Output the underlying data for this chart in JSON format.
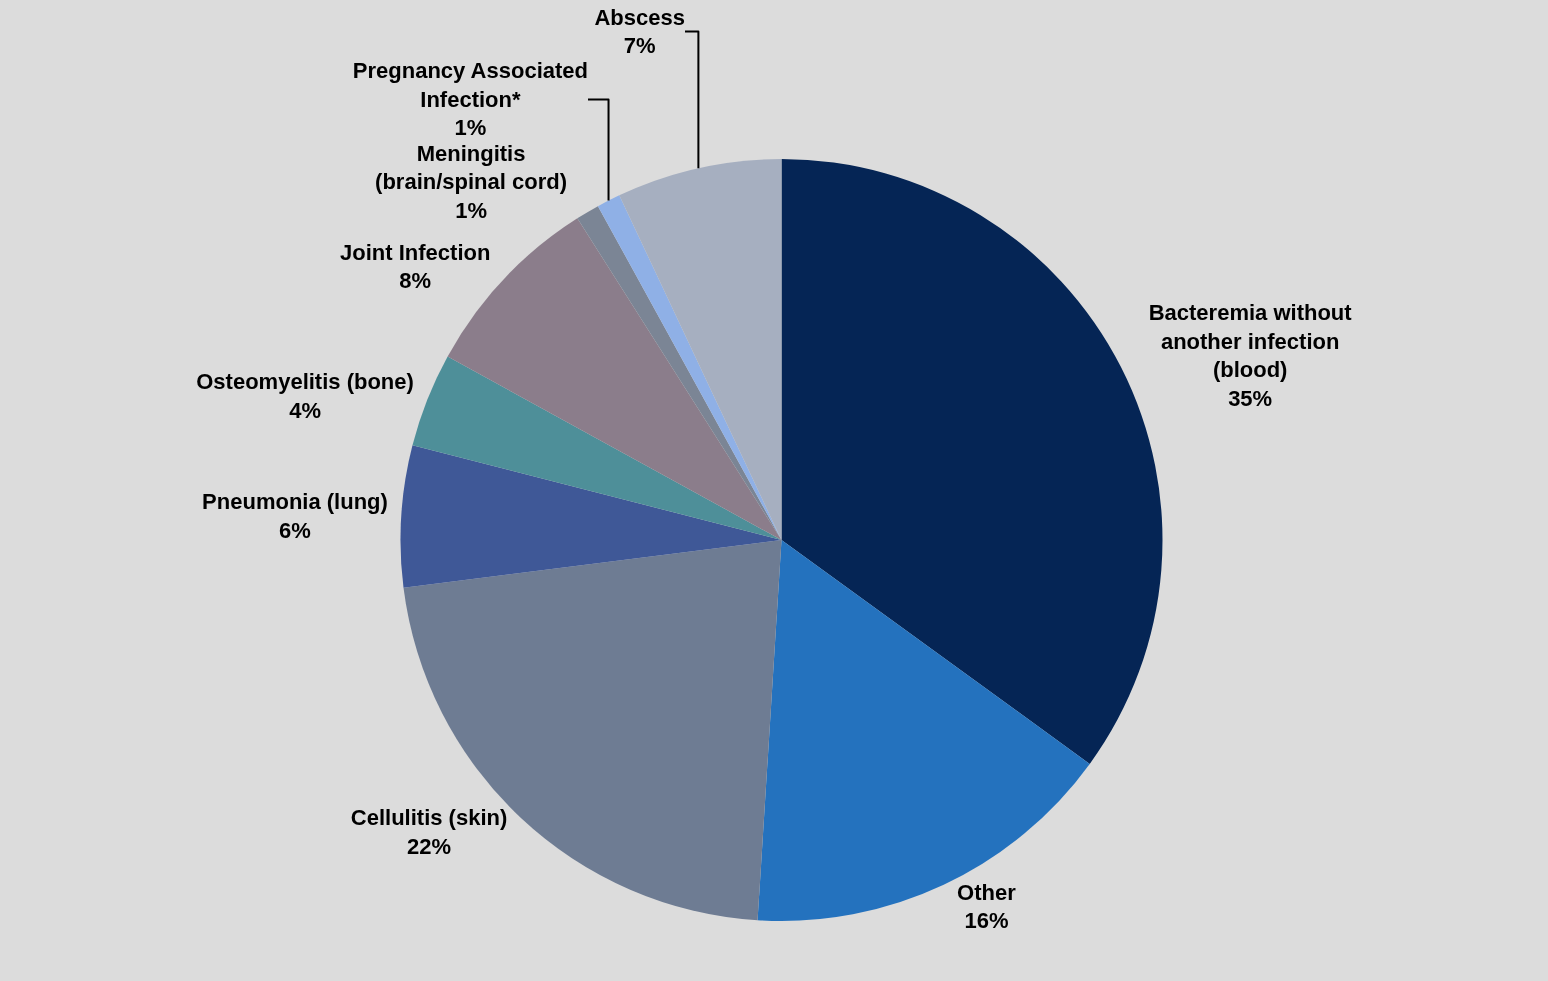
{
  "chart_data": {
    "type": "pie",
    "categories": [
      "Bacteremia without another infection (blood)",
      "Other",
      "Cellulitis (skin)",
      "Pneumonia (lung)",
      "Osteomyelitis (bone)",
      "Joint Infection",
      "Meningitis (brain/spinal cord)",
      "Pregnancy Associated Infection*",
      "Abscess"
    ],
    "values": [
      35,
      16,
      22,
      6,
      4,
      8,
      1,
      1,
      7
    ],
    "value_labels": [
      "35%",
      "16%",
      "22%",
      "6%",
      "4%",
      "8%",
      "1%",
      "1%",
      "7%"
    ],
    "colors": [
      "#052555",
      "#2472be",
      "#6e7c93",
      "#3f5897",
      "#4e8f99",
      "#8b7d8b",
      "#7b8595",
      "#8fb0e6",
      "#a6afc0"
    ],
    "legend": false
  }
}
